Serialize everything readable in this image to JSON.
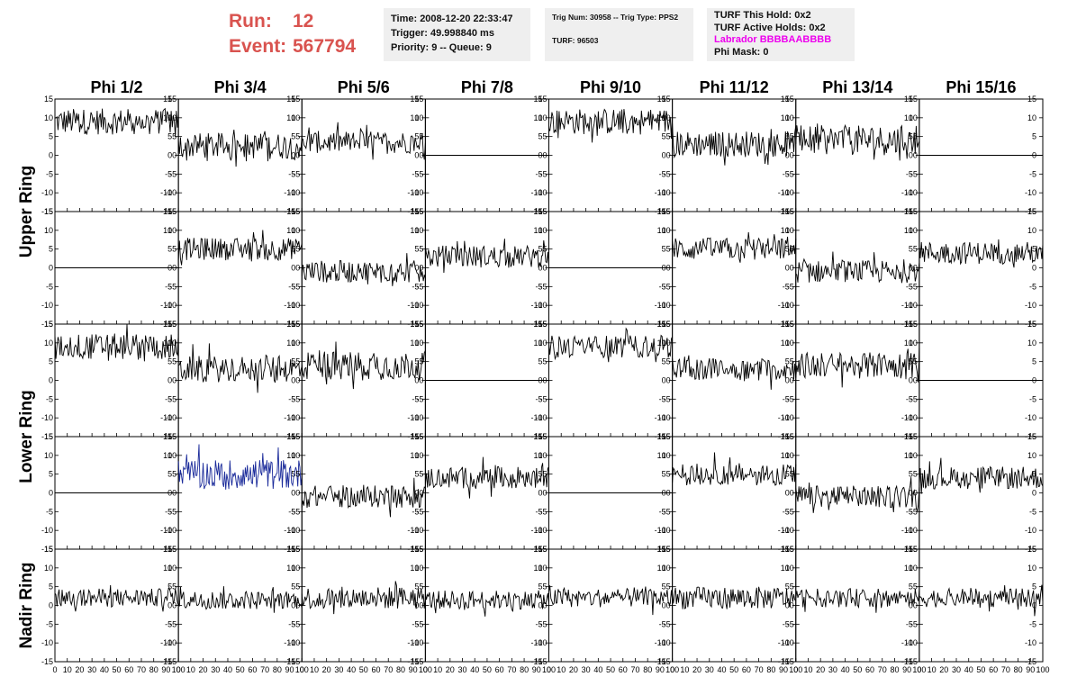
{
  "header": {
    "run_label": "Run:",
    "run_value": "12",
    "event_label": "Event:",
    "event_value": "567794",
    "time": "Time: 2008-12-20 22:33:47",
    "trigger": "Trigger: 49.998840 ms",
    "priority": "Priority: 9 -- Queue: 9",
    "trig_num": "Trig Num: 30958 -- Trig Type: PPS2",
    "turf": "TURF: 96503",
    "turf_hold": "TURF This Hold: 0x2",
    "turf_active": "TURF Active Holds: 0x2",
    "labrador": "Labrador BBBBAABBBB",
    "phi_mask": "Phi Mask: 0"
  },
  "colors": {
    "header_red": "#d9534f",
    "labrador_magenta": "#ee00ee",
    "trace_black": "#000000",
    "trace_blue": "#1a2a9a",
    "box_bg": "#efefef"
  },
  "chart_data": {
    "type": "line",
    "columns": [
      "Phi 1/2",
      "Phi 3/4",
      "Phi 5/6",
      "Phi 7/8",
      "Phi 9/10",
      "Phi 11/12",
      "Phi 13/14",
      "Phi 15/16"
    ],
    "row_labels": [
      "Upper Ring",
      "Lower Ring",
      "Nadir Ring"
    ],
    "xlim": [
      0,
      100
    ],
    "ylim": [
      -15,
      15
    ],
    "x_ticks": [
      "0",
      "10",
      "20",
      "30",
      "40",
      "50",
      "60",
      "70",
      "80",
      "90",
      "100"
    ],
    "y_ticks": [
      "15",
      "10",
      "5",
      "0",
      "-5",
      "-10",
      "-15"
    ],
    "panels": [
      [
        {
          "level": 9,
          "amp": 3.5
        },
        {
          "level": 2.5,
          "amp": 3.5
        },
        {
          "level": 3.5,
          "amp": 3
        },
        {
          "level": 0,
          "amp": 0
        },
        {
          "level": 9,
          "amp": 3.5
        },
        {
          "level": 3,
          "amp": 3.5
        },
        {
          "level": 4,
          "amp": 4
        },
        {
          "level": 0,
          "amp": 0
        }
      ],
      [
        {
          "level": 0,
          "amp": 0
        },
        {
          "level": 5,
          "amp": 3
        },
        {
          "level": -1,
          "amp": 3
        },
        {
          "level": 3,
          "amp": 3
        },
        {
          "level": 0,
          "amp": 0
        },
        {
          "level": 5,
          "amp": 3
        },
        {
          "level": -1,
          "amp": 3
        },
        {
          "level": 4,
          "amp": 3
        }
      ],
      [
        {
          "level": 9,
          "amp": 3.5
        },
        {
          "level": 3,
          "amp": 3.5
        },
        {
          "level": 4,
          "amp": 4
        },
        {
          "level": 0,
          "amp": 0
        },
        {
          "level": 9,
          "amp": 3
        },
        {
          "level": 3,
          "amp": 3
        },
        {
          "level": 4,
          "amp": 3.5
        },
        {
          "level": 0,
          "amp": 0
        }
      ],
      [
        {
          "level": 0,
          "amp": 0
        },
        {
          "level": 5,
          "amp": 4,
          "blue": true
        },
        {
          "level": -1,
          "amp": 3
        },
        {
          "level": 4,
          "amp": 3
        },
        {
          "level": 0,
          "amp": 0
        },
        {
          "level": 5,
          "amp": 3
        },
        {
          "level": -1,
          "amp": 3
        },
        {
          "level": 4,
          "amp": 3
        }
      ],
      [
        {
          "level": 2,
          "amp": 2.5
        },
        {
          "level": 1.5,
          "amp": 2.5
        },
        {
          "level": 2,
          "amp": 3
        },
        {
          "level": 1.5,
          "amp": 2.5
        },
        {
          "level": 2,
          "amp": 2.5
        },
        {
          "level": 2,
          "amp": 3
        },
        {
          "level": 2,
          "amp": 2.5
        },
        {
          "level": 2,
          "amp": 2.5
        }
      ]
    ]
  }
}
